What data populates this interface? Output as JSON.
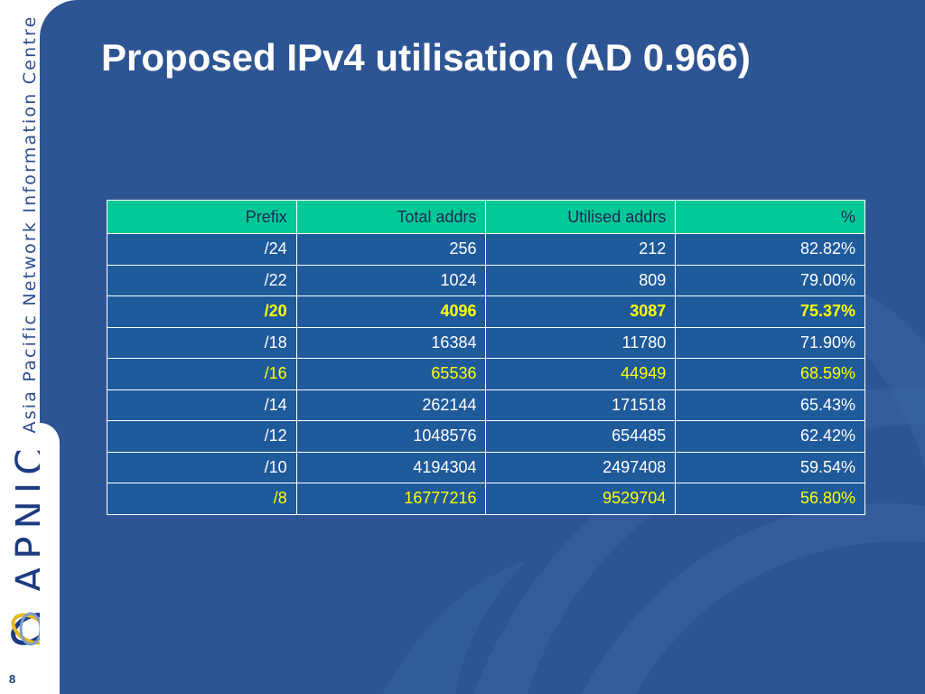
{
  "sidebar": {
    "org_name": "Asia Pacific Network Information Centre",
    "logo_text": "APNIC",
    "page_number": "8"
  },
  "slide": {
    "title": "Proposed IPv4 utilisation (AD 0.966)"
  },
  "table": {
    "headers": [
      "Prefix",
      "Total addrs",
      "Utilised addrs",
      "%"
    ],
    "rows": [
      [
        "/24",
        "256",
        "212",
        "82.82%"
      ],
      [
        "/22",
        "1024",
        "809",
        "79.00%"
      ],
      [
        "/20",
        "4096",
        "3087",
        "75.37%"
      ],
      [
        "/18",
        "16384",
        "11780",
        "71.90%"
      ],
      [
        "/16",
        "65536",
        "44949",
        "68.59%"
      ],
      [
        "/14",
        "262144",
        "171518",
        "65.43%"
      ],
      [
        "/12",
        "1048576",
        "654485",
        "62.42%"
      ],
      [
        "/10",
        "4194304",
        "2497408",
        "59.54%"
      ],
      [
        "/8",
        "16777216",
        "9529704",
        "56.80%"
      ]
    ]
  },
  "colors": {
    "background": "#2e5593",
    "header_fill": "#00c896",
    "cell_fill": "#1f5a9b",
    "highlight_text": "#ffff00",
    "logo_blue": "#1d3b80"
  }
}
